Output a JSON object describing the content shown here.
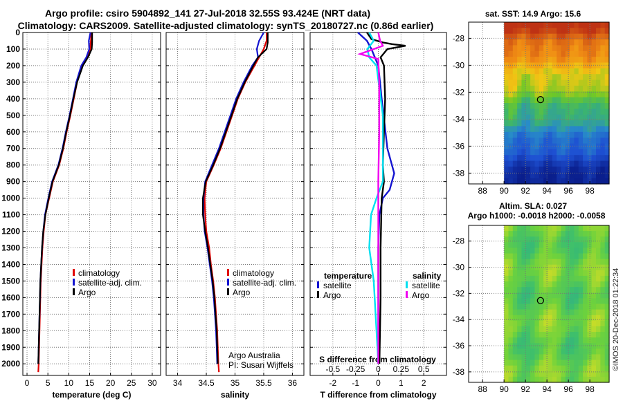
{
  "title": {
    "line1": "Argo profile: csiro 5904892_141 27-Jul-2018 32.55S 93.424E (NRT data)",
    "line2": "Climatology: CARS2009. Satellite-adjusted climatology: synTS_20180727.nc (0.86d earlier)"
  },
  "credit": {
    "line1": "Argo Australia",
    "line2": "PI: Susan Wijffels"
  },
  "timestamp": "©IMOS 20-Dec-2018 01:22:34",
  "colors": {
    "climatology": "#e00000",
    "satellite": "#1414d0",
    "argo": "#000000",
    "sat_salinity": "#00e0f0",
    "argo_salinity": "#f000f0"
  },
  "depth_axis": {
    "ticks": [
      0,
      100,
      200,
      300,
      400,
      500,
      600,
      700,
      800,
      900,
      1000,
      1100,
      1200,
      1300,
      1400,
      1500,
      1600,
      1700,
      1800,
      1900,
      2000
    ],
    "ylim": [
      0,
      2070
    ]
  },
  "chart_data": [
    {
      "id": "temperature",
      "type": "line",
      "xlabel": "temperature (deg C)",
      "xlim": [
        -1,
        32
      ],
      "xticks": [
        0,
        5,
        10,
        15,
        20,
        25,
        30
      ],
      "legend": [
        "climatology",
        "satellite-adj. clim.",
        "Argo"
      ],
      "series": [
        {
          "name": "climatology",
          "color": "#e00000",
          "points": [
            [
              15.4,
              0
            ],
            [
              15.3,
              50
            ],
            [
              15.1,
              100
            ],
            [
              14.4,
              150
            ],
            [
              13.2,
              200
            ],
            [
              12.0,
              300
            ],
            [
              11.2,
              400
            ],
            [
              10.4,
              500
            ],
            [
              9.5,
              600
            ],
            [
              8.7,
              700
            ],
            [
              7.7,
              800
            ],
            [
              6.2,
              900
            ],
            [
              5.3,
              1000
            ],
            [
              4.4,
              1100
            ],
            [
              4.0,
              1200
            ],
            [
              3.7,
              1300
            ],
            [
              3.5,
              1400
            ],
            [
              3.3,
              1500
            ],
            [
              3.2,
              1600
            ],
            [
              3.1,
              1700
            ],
            [
              3.0,
              1800
            ],
            [
              2.9,
              1900
            ],
            [
              2.8,
              2000
            ],
            [
              2.7,
              2050
            ]
          ]
        },
        {
          "name": "satellite-adj. clim.",
          "color": "#1414d0",
          "points": [
            [
              15.2,
              0
            ],
            [
              14.8,
              50
            ],
            [
              14.9,
              100
            ],
            [
              14.2,
              150
            ],
            [
              13.0,
              200
            ],
            [
              11.8,
              300
            ],
            [
              11.0,
              400
            ],
            [
              10.2,
              500
            ],
            [
              9.3,
              600
            ],
            [
              8.5,
              700
            ],
            [
              7.5,
              800
            ],
            [
              6.0,
              900
            ],
            [
              5.1,
              1000
            ],
            [
              4.3,
              1100
            ],
            [
              3.9,
              1200
            ],
            [
              3.6,
              1300
            ],
            [
              3.4,
              1400
            ],
            [
              3.2,
              1500
            ],
            [
              3.1,
              1600
            ],
            [
              3.0,
              1700
            ],
            [
              2.9,
              1800
            ],
            [
              2.8,
              1900
            ],
            [
              2.7,
              2000
            ]
          ]
        },
        {
          "name": "Argo",
          "color": "#000000",
          "points": [
            [
              15.6,
              0
            ],
            [
              15.6,
              60
            ],
            [
              15.5,
              100
            ],
            [
              14.6,
              150
            ],
            [
              13.4,
              200
            ],
            [
              12.0,
              300
            ],
            [
              11.1,
              400
            ],
            [
              10.3,
              500
            ],
            [
              9.4,
              600
            ],
            [
              8.6,
              700
            ],
            [
              7.6,
              800
            ],
            [
              6.1,
              900
            ],
            [
              5.2,
              1000
            ],
            [
              4.4,
              1100
            ],
            [
              3.9,
              1200
            ],
            [
              3.6,
              1300
            ],
            [
              3.4,
              1400
            ],
            [
              3.2,
              1500
            ],
            [
              3.1,
              1600
            ],
            [
              3.0,
              1700
            ],
            [
              2.9,
              1800
            ],
            [
              2.8,
              1900
            ],
            [
              2.7,
              2000
            ]
          ]
        }
      ]
    },
    {
      "id": "salinity",
      "type": "line",
      "xlabel": "salinity",
      "xlim": [
        33.8,
        36.2
      ],
      "xticks": [
        34,
        34.5,
        35,
        35.5,
        36
      ],
      "legend": [
        "climatology",
        "satellite-adj. clim.",
        "Argo"
      ],
      "series": [
        {
          "name": "climatology",
          "color": "#e00000",
          "points": [
            [
              35.55,
              0
            ],
            [
              35.55,
              50
            ],
            [
              35.5,
              100
            ],
            [
              35.42,
              150
            ],
            [
              35.34,
              200
            ],
            [
              35.18,
              300
            ],
            [
              35.05,
              400
            ],
            [
              34.95,
              500
            ],
            [
              34.85,
              600
            ],
            [
              34.75,
              700
            ],
            [
              34.63,
              800
            ],
            [
              34.5,
              900
            ],
            [
              34.47,
              1000
            ],
            [
              34.48,
              1100
            ],
            [
              34.5,
              1200
            ],
            [
              34.55,
              1300
            ],
            [
              34.58,
              1400
            ],
            [
              34.62,
              1500
            ],
            [
              34.65,
              1600
            ],
            [
              34.67,
              1700
            ],
            [
              34.69,
              1800
            ],
            [
              34.7,
              1900
            ],
            [
              34.71,
              2000
            ],
            [
              34.72,
              2050
            ]
          ]
        },
        {
          "name": "satellite-adj. clim.",
          "color": "#1414d0",
          "points": [
            [
              35.5,
              0
            ],
            [
              35.42,
              50
            ],
            [
              35.38,
              100
            ],
            [
              35.4,
              150
            ],
            [
              35.3,
              200
            ],
            [
              35.15,
              300
            ],
            [
              35.02,
              400
            ],
            [
              34.92,
              500
            ],
            [
              34.82,
              600
            ],
            [
              34.72,
              700
            ],
            [
              34.6,
              800
            ],
            [
              34.48,
              900
            ],
            [
              34.45,
              1000
            ],
            [
              34.45,
              1100
            ],
            [
              34.47,
              1200
            ],
            [
              34.52,
              1300
            ],
            [
              34.56,
              1400
            ],
            [
              34.6,
              1500
            ],
            [
              34.63,
              1600
            ],
            [
              34.65,
              1700
            ],
            [
              34.67,
              1800
            ],
            [
              34.68,
              1900
            ],
            [
              34.69,
              2000
            ]
          ]
        },
        {
          "name": "Argo",
          "color": "#000000",
          "points": [
            [
              35.57,
              0
            ],
            [
              35.57,
              60
            ],
            [
              35.55,
              100
            ],
            [
              35.4,
              150
            ],
            [
              35.32,
              200
            ],
            [
              35.17,
              300
            ],
            [
              35.04,
              400
            ],
            [
              34.94,
              500
            ],
            [
              34.84,
              600
            ],
            [
              34.74,
              700
            ],
            [
              34.62,
              800
            ],
            [
              34.49,
              900
            ],
            [
              34.44,
              1000
            ],
            [
              34.44,
              1100
            ],
            [
              34.48,
              1200
            ],
            [
              34.53,
              1300
            ],
            [
              34.57,
              1400
            ],
            [
              34.61,
              1500
            ],
            [
              34.64,
              1600
            ],
            [
              34.66,
              1700
            ],
            [
              34.68,
              1800
            ],
            [
              34.69,
              1900
            ],
            [
              34.7,
              2000
            ]
          ]
        }
      ]
    },
    {
      "id": "difference",
      "type": "line",
      "xlabel": "T difference from climatology",
      "xlim": [
        -3,
        3
      ],
      "xticks": [
        -2,
        -1,
        0,
        1,
        2
      ],
      "top_label": "S difference from climatology",
      "top_ticks": [
        "-0.5",
        "-0.25",
        "0",
        "0.25",
        "0.5"
      ],
      "top_tick_values": [
        -0.5,
        -0.25,
        0,
        0.25,
        0.5
      ],
      "legend_title_left": "temperature",
      "legend_title_right": "salinity",
      "legend_left": [
        "satellite",
        "Argo"
      ],
      "legend_right": [
        "satellite",
        "Argo"
      ],
      "series": [
        {
          "name": "T satellite",
          "color": "#1414d0",
          "points": [
            [
              -0.9,
              0
            ],
            [
              -0.5,
              50
            ],
            [
              -0.3,
              100
            ],
            [
              0.0,
              200
            ],
            [
              0.15,
              400
            ],
            [
              0.4,
              700
            ],
            [
              0.7,
              850
            ],
            [
              0.5,
              950
            ],
            [
              0.2,
              1000
            ],
            [
              0.05,
              1100
            ],
            [
              0.0,
              1300
            ],
            [
              0.0,
              2000
            ]
          ]
        },
        {
          "name": "T Argo",
          "color": "#000000",
          "points": [
            [
              -0.5,
              0
            ],
            [
              -0.3,
              40
            ],
            [
              0.2,
              60
            ],
            [
              0.6,
              70
            ],
            [
              1.2,
              80
            ],
            [
              0.4,
              100
            ],
            [
              0.1,
              150
            ],
            [
              0.25,
              200
            ],
            [
              0.3,
              400
            ],
            [
              0.25,
              600
            ],
            [
              0.2,
              800
            ],
            [
              0.25,
              900
            ],
            [
              0.15,
              1000
            ],
            [
              0.1,
              1300
            ],
            [
              0.1,
              1600
            ],
            [
              0.05,
              2000
            ]
          ]
        },
        {
          "name": "S satellite",
          "color": "#00e0f0",
          "points": [
            [
              -0.1,
              0
            ],
            [
              -0.05,
              50
            ],
            [
              -0.12,
              100
            ],
            [
              -0.1,
              150
            ],
            [
              -0.02,
              200
            ],
            [
              0.05,
              500
            ],
            [
              0.05,
              900
            ],
            [
              -0.02,
              1000
            ],
            [
              -0.08,
              1100
            ],
            [
              -0.1,
              1300
            ],
            [
              -0.05,
              1500
            ],
            [
              -0.02,
              1800
            ],
            [
              0.0,
              2000
            ]
          ]
        },
        {
          "name": "S Argo",
          "color": "#f000f0",
          "points": [
            [
              0.0,
              0
            ],
            [
              0.02,
              50
            ],
            [
              0.05,
              80
            ],
            [
              -0.05,
              100
            ],
            [
              -0.2,
              130
            ],
            [
              0.0,
              160
            ],
            [
              0.01,
              300
            ],
            [
              0.01,
              600
            ],
            [
              0.0,
              900
            ],
            [
              0.0,
              1200
            ],
            [
              0.0,
              1500
            ],
            [
              0.0,
              2000
            ]
          ]
        }
      ]
    }
  ],
  "maps": [
    {
      "id": "sst-map",
      "title": "sat. SST: 14.9 Argo: 15.6",
      "xticks": [
        "88",
        "90",
        "92",
        "94",
        "96",
        "98"
      ],
      "yticks": [
        "-28",
        "-30",
        "-32",
        "-34",
        "-36",
        "-38"
      ],
      "marker": {
        "lon": 93.4,
        "lat": -32.55
      }
    },
    {
      "id": "sla-map",
      "title_line1": "Altim. SLA: 0.027",
      "title_line2": "Argo h1000: -0.0018 h2000: -0.0058",
      "xticks": [
        "88",
        "90",
        "92",
        "94",
        "96",
        "98"
      ],
      "yticks": [
        "-28",
        "-30",
        "-32",
        "-34",
        "-36",
        "-38"
      ],
      "marker": {
        "lon": 93.4,
        "lat": -32.55
      }
    }
  ]
}
